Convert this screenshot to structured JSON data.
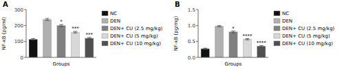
{
  "chart_data": [
    {
      "type": "bar",
      "title": "A",
      "xlabel": "Groups",
      "ylabel": "NF-κB (pg/ml)",
      "categories": [
        "NC",
        "DEN",
        "DEN+ CU (2.5 mg/kg)",
        "DEN+ CU (5 mg/kg)",
        "DEN+ CU (10 mg/kg)"
      ],
      "values": [
        113,
        238,
        200,
        158,
        120
      ],
      "errors": [
        5,
        6,
        6,
        5,
        5
      ],
      "colors": [
        "#111111",
        "#b0b0b0",
        "#808080",
        "#d8d8d8",
        "#505050"
      ],
      "annotations": [
        {
          "category": "DEN+ CU (2.5 mg/kg)",
          "text": "*"
        },
        {
          "category": "DEN+ CU (5 mg/kg)",
          "text": "***"
        },
        {
          "category": "DEN+ CU (10 mg/kg)",
          "text": "***"
        }
      ],
      "ylim": [
        0,
        300
      ],
      "yticks": [
        0,
        100,
        200,
        300
      ],
      "tick_labels": "y",
      "legend": "right",
      "grid": false
    },
    {
      "type": "bar",
      "title": "B",
      "xlabel": "Groups",
      "ylabel": "NF-κB (pg/mg)",
      "categories": [
        "NC",
        "DEN",
        "DEN+ CU (2.5 mg/kg)",
        "DEN+ CU (5 mg/kg)",
        "DEN+ CU (10 mg/kg)"
      ],
      "values": [
        0.27,
        0.98,
        0.8,
        0.57,
        0.35
      ],
      "errors": [
        0.02,
        0.02,
        0.03,
        0.02,
        0.02
      ],
      "colors": [
        "#111111",
        "#b0b0b0",
        "#808080",
        "#d8d8d8",
        "#505050"
      ],
      "annotations": [
        {
          "category": "DEN+ CU (2.5 mg/kg)",
          "text": "*"
        },
        {
          "category": "DEN+ CU (5 mg/kg)",
          "text": "****"
        },
        {
          "category": "DEN+ CU (10 mg/kg)",
          "text": "****"
        }
      ],
      "ylim": [
        0,
        1.5
      ],
      "yticks": [
        {
          "value": 0.0,
          "label": "0.0"
        },
        0.5,
        {
          "value": 1.0,
          "label": "1.0"
        },
        1.5
      ],
      "tick_labels": "y",
      "legend": "right",
      "grid": false
    }
  ]
}
